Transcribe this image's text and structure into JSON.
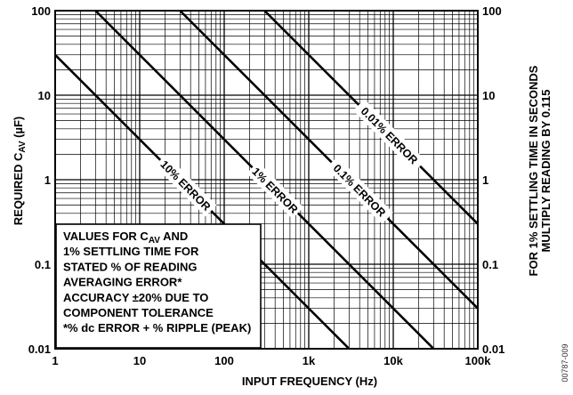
{
  "chart_data": {
    "type": "line",
    "x_scale": "log",
    "y_scale": "log",
    "xlim": [
      1,
      100000
    ],
    "ylim": [
      0.01,
      100
    ],
    "grid": true,
    "xlabel": "INPUT FREQUENCY (Hz)",
    "ylabel": {
      "prefix": "REQUIRED C",
      "sub": "AV",
      "suffix": " (µF)"
    },
    "y2label": {
      "line1": "FOR 1% SETTLING TIME IN SECONDS",
      "line2": "MULTIPLY READING BY 0.115"
    },
    "x_ticks": [
      {
        "value": 1,
        "label": "1"
      },
      {
        "value": 10,
        "label": "10"
      },
      {
        "value": 100,
        "label": "100"
      },
      {
        "value": 1000,
        "label": "1k"
      },
      {
        "value": 10000,
        "label": "10k"
      },
      {
        "value": 100000,
        "label": "100k"
      }
    ],
    "y_ticks": [
      {
        "value": 100,
        "label": "100"
      },
      {
        "value": 10,
        "label": "10"
      },
      {
        "value": 1,
        "label": "1"
      },
      {
        "value": 0.1,
        "label": "0.1"
      },
      {
        "value": 0.01,
        "label": "0.01"
      }
    ],
    "series": [
      {
        "name": "10% ERROR",
        "x": [
          1,
          3000
        ],
        "y": [
          30,
          0.01
        ]
      },
      {
        "name": "1% ERROR",
        "x": [
          3,
          30000
        ],
        "y": [
          100,
          0.01
        ]
      },
      {
        "name": "0.1% ERROR",
        "x": [
          30,
          100000
        ],
        "y": [
          100,
          0.03
        ]
      },
      {
        "name": "0.01% ERROR",
        "x": [
          300,
          100000
        ],
        "y": [
          100,
          0.3
        ]
      }
    ],
    "annotation": [
      {
        "text": "VALUES FOR C",
        "sub": "AV",
        "after": " AND"
      },
      {
        "text": "1% SETTLING TIME FOR"
      },
      {
        "text": "STATED % OF READING"
      },
      {
        "text": "AVERAGING ERROR*"
      },
      {
        "text": "ACCURACY ±20% DUE TO"
      },
      {
        "text": "COMPONENT TOLERANCE"
      },
      {
        "text": "*% dc ERROR + % RIPPLE (PEAK)"
      }
    ],
    "figure_code": "00787-009"
  }
}
